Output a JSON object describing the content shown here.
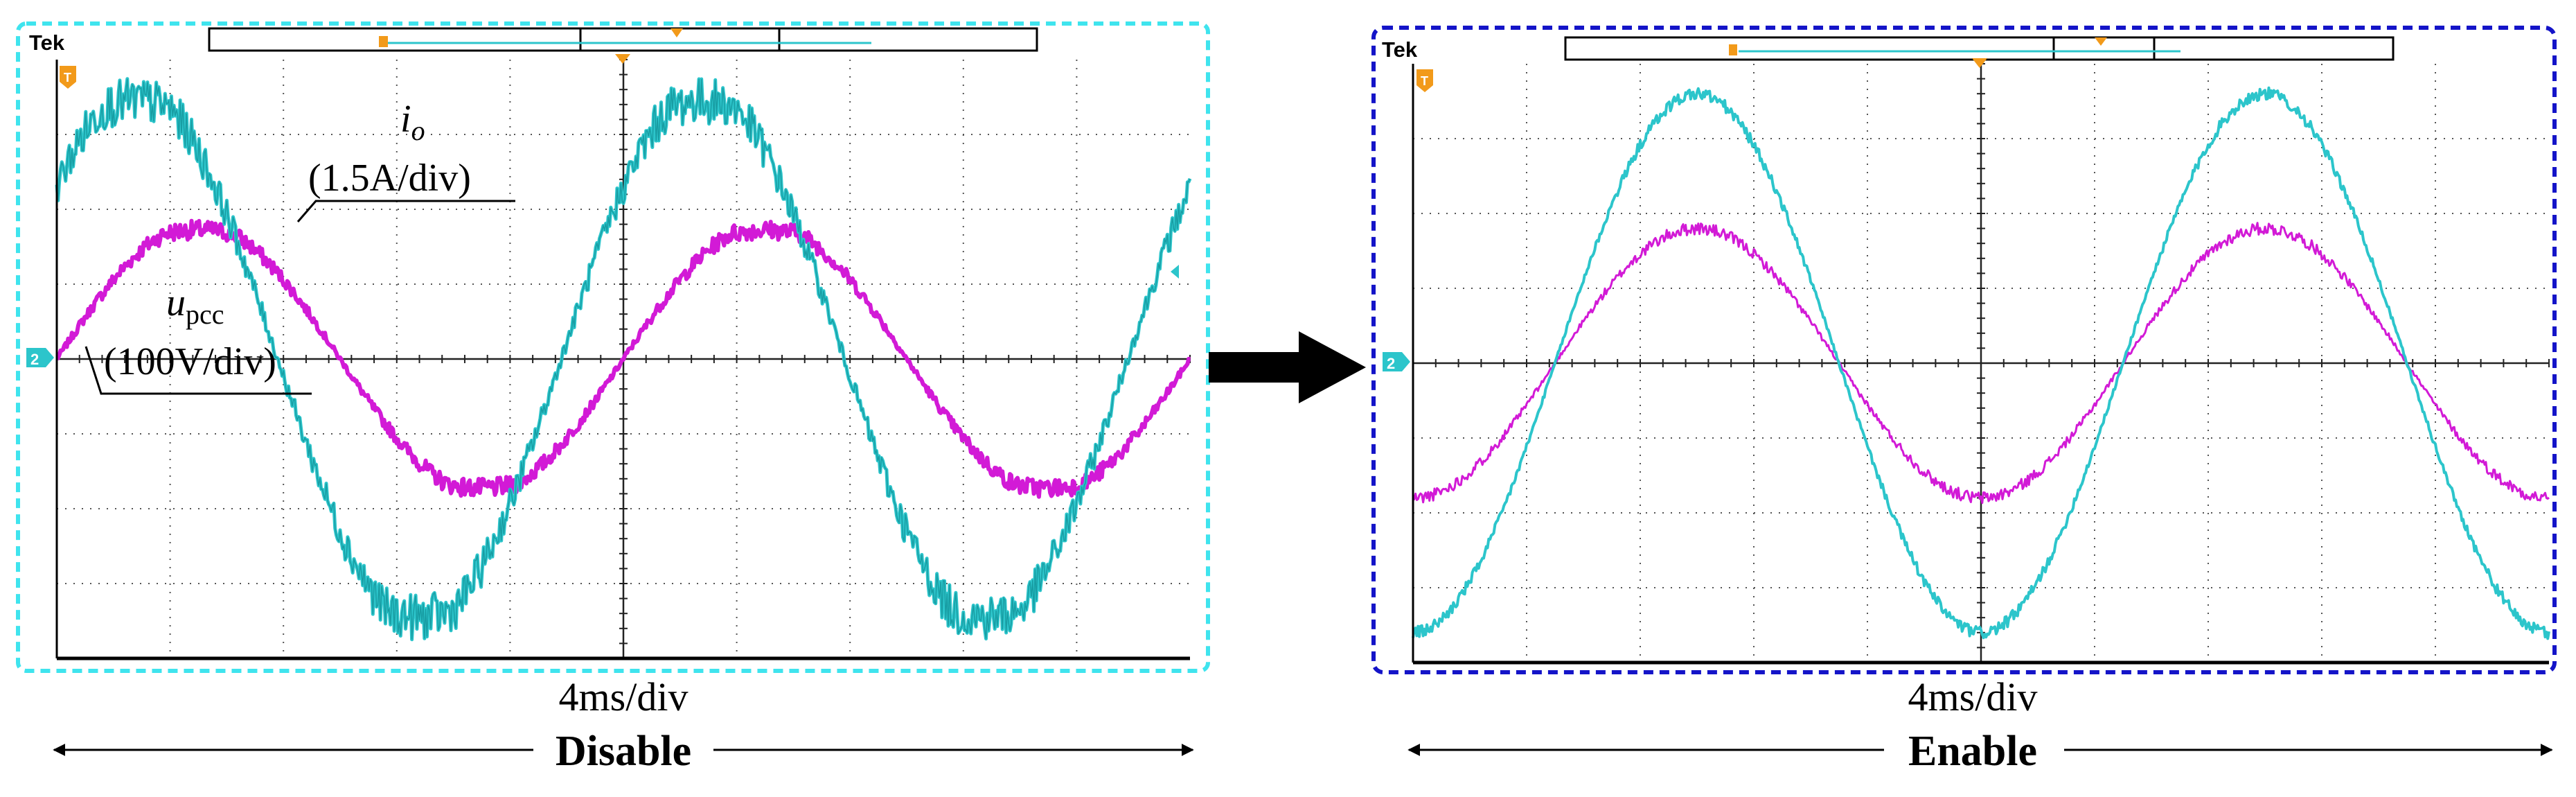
{
  "colors": {
    "ch_voltage": "#d21ad6",
    "ch_current": "#2cc5cb",
    "ch_current_dark": "#0f8b91",
    "frame_left": "#3fe4ee",
    "frame_right": "#1414c8",
    "marker": "#f29a1a",
    "arrow": "#000000"
  },
  "icons": {
    "between_panels": "arrow-right-icon",
    "label_arrows": "double-arrow-icon"
  },
  "panels": [
    {
      "id": "left",
      "brand": "Tek",
      "timebase": "4ms/div",
      "state_label": "Disable",
      "trigger_marker": "T",
      "ground_marker": "2",
      "annotations": {
        "current_symbol": "i",
        "current_sub": "o",
        "current_scale": "(1.5A/div)",
        "voltage_symbol": "u",
        "voltage_sub": "pcc",
        "voltage_scale": "(100V/div)"
      }
    },
    {
      "id": "right",
      "brand": "Tek",
      "timebase": "4ms/div",
      "state_label": "Enable",
      "trigger_marker": "T",
      "ground_marker": "2"
    }
  ],
  "chart_data": [
    {
      "type": "line",
      "title": "",
      "xlabel": "4ms/div",
      "ylabel": "",
      "grid": true,
      "xlim": [
        0,
        10
      ],
      "ylim": [
        -4,
        4
      ],
      "x_unit": "div",
      "y_unit": "div",
      "series": [
        {
          "name": "io",
          "amplitude": 3.6,
          "phase_div": -0.55,
          "period_div": 5,
          "distortion": "high"
        },
        {
          "name": "upcc",
          "amplitude": 1.8,
          "phase_div": 0,
          "period_div": 5,
          "distortion": "medium"
        }
      ]
    },
    {
      "type": "line",
      "title": "",
      "xlabel": "4ms/div",
      "ylabel": "",
      "grid": true,
      "xlim": [
        0,
        10
      ],
      "ylim": [
        -4,
        4
      ],
      "x_unit": "div",
      "y_unit": "div",
      "series": [
        {
          "name": "io",
          "amplitude": 3.6,
          "phase_div": 1.25,
          "period_div": 5,
          "distortion": "low"
        },
        {
          "name": "upcc",
          "amplitude": 1.8,
          "phase_div": 1.25,
          "period_div": 5,
          "distortion": "low"
        }
      ]
    }
  ]
}
